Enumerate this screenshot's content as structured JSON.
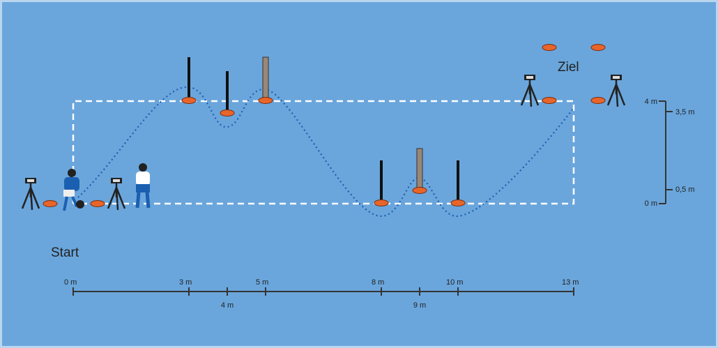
{
  "labels": {
    "start": "Start",
    "goal": "Ziel"
  },
  "horizontal_scale": [
    "0 m",
    "3 m",
    "4 m",
    "5 m",
    "8 m",
    "9 m",
    "10 m",
    "13 m"
  ],
  "vertical_scale": [
    "4 m",
    "0 m",
    "3,5 m",
    "0,5 m"
  ]
}
